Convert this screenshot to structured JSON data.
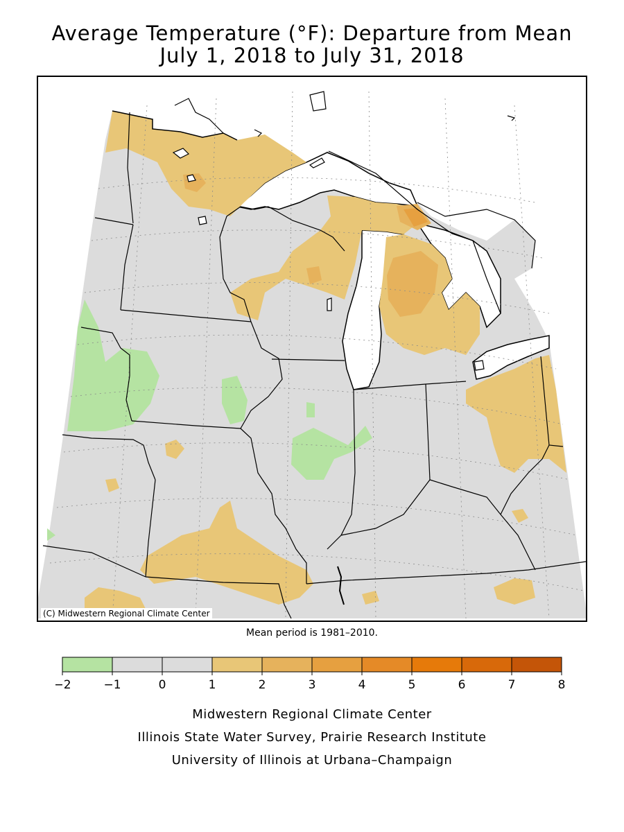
{
  "title": {
    "line1": "Average Temperature (°F): Departure from Mean",
    "line2": "July 1, 2018 to July 31, 2018"
  },
  "map": {
    "copyright": "(C) Midwestern Regional Climate Center",
    "mean_note": "Mean period is 1981–2010."
  },
  "legend": {
    "ticks": [
      "−2",
      "−1",
      "0",
      "1",
      "2",
      "3",
      "4",
      "5",
      "6",
      "7",
      "8"
    ],
    "colors": [
      "#b5e3a2",
      "#dcdcdc",
      "#dcdcdc",
      "#e8c677",
      "#e6b25c",
      "#e6a040",
      "#e58a27",
      "#e67a0a",
      "#d8690a",
      "#c45508"
    ]
  },
  "credits": [
    "Midwestern Regional Climate Center",
    "Illinois State Water Survey, Prairie Research Institute",
    "University of Illinois at Urbana–Champaign"
  ],
  "colors": {
    "green": "#b5e3a2",
    "gray": "#dcdcdc",
    "tan": "#e8c677",
    "orange": "#e6b25c",
    "dark_orange": "#e6a040"
  }
}
